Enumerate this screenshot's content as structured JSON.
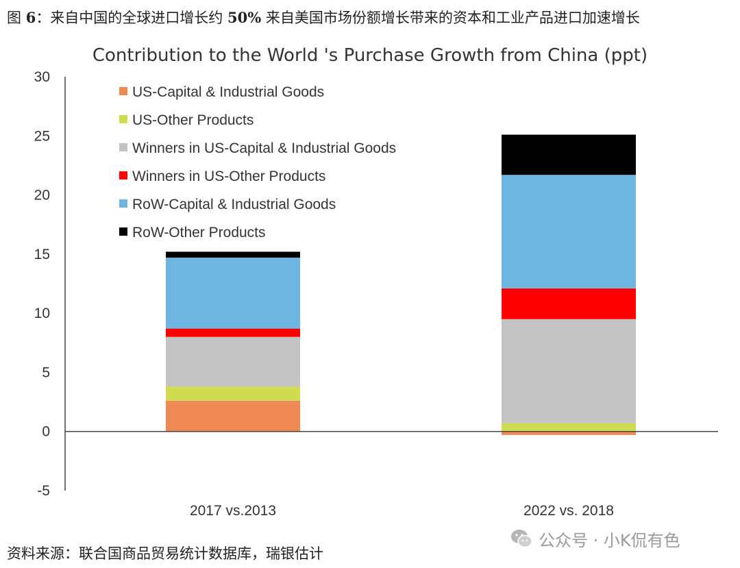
{
  "figure": {
    "label": "图",
    "number": "6",
    "text_before": "：来自中国的全球进口增长约",
    "highlight": "50%",
    "text_after": "来自美国市场份额增长带来的资本和工业产品进口加速增长"
  },
  "source_note": "资料来源：联合国商品贸易统计数据库，瑞银估计",
  "watermark": {
    "icon": "wechat-icon",
    "text": "公众号 · 小K侃有色"
  },
  "chart_data": {
    "type": "bar",
    "stacked": true,
    "title": "Contribution to the World 's Purchase Growth from China (ppt)",
    "xlabel": "",
    "ylabel": "",
    "ylim": [
      -5,
      30
    ],
    "yticks": [
      -5,
      0,
      5,
      10,
      15,
      20,
      25,
      30
    ],
    "categories": [
      "2017 vs.2013",
      "2022 vs. 2018"
    ],
    "legend_position": "top-left",
    "series": [
      {
        "name": "US-Capital & Industrial Goods",
        "color": "#f08a55",
        "values": [
          2.6,
          -0.3
        ]
      },
      {
        "name": "US-Other Products",
        "color": "#cfdc52",
        "values": [
          1.2,
          0.7
        ]
      },
      {
        "name": "Winners in US-Capital & Industrial Goods",
        "color": "#c3c3c3",
        "values": [
          4.2,
          8.8
        ]
      },
      {
        "name": "Winners in US-Other Products",
        "color": "#ff0000",
        "values": [
          0.7,
          2.6
        ]
      },
      {
        "name": "RoW-Capital & Industrial Goods",
        "color": "#6fb5e2",
        "values": [
          6.0,
          9.6
        ]
      },
      {
        "name": "RoW-Other Products",
        "color": "#000000",
        "values": [
          0.5,
          3.4
        ]
      }
    ]
  }
}
